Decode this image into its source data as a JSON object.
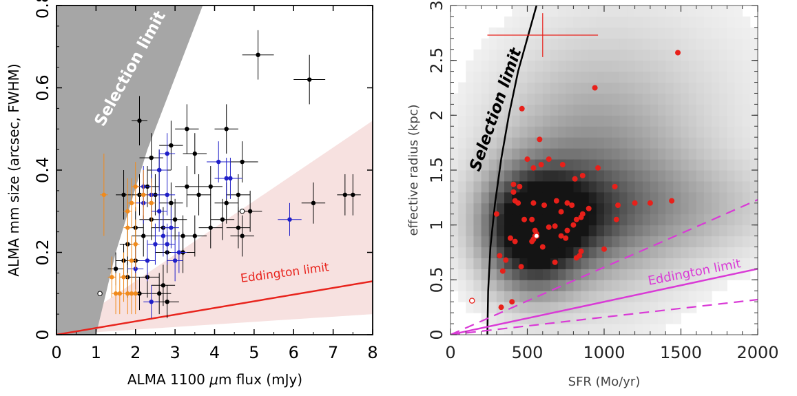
{
  "chart_data": [
    {
      "type": "scatter",
      "xlabel_pre": "ALMA 1100 ",
      "xlabel_mu": "μ",
      "xlabel_post": "m flux (mJy)",
      "ylabel": "ALMA mm size (arcsec, FWHM)",
      "xlim": [
        0,
        8
      ],
      "ylim": [
        0,
        0.8
      ],
      "x_ticks": [
        0,
        1,
        2,
        3,
        4,
        5,
        6,
        7,
        8
      ],
      "y_ticks": [
        0,
        0.2,
        0.4,
        0.6,
        0.8
      ],
      "y_tick_labels": [
        "0",
        "0.2",
        "0.4",
        "0.6",
        "0.8"
      ],
      "annotations": {
        "selection": "Selection limit",
        "eddington": "Eddington limit"
      },
      "colors": {
        "selection_region": "#a6a6a6",
        "eddington_band": "#f7e1e0",
        "eddington_line": "#e8231c",
        "black": "#000000",
        "blue": "#1f1fc8",
        "orange": "#f08a1c"
      },
      "selection_boundary": [
        [
          1.0,
          0.0
        ],
        [
          1.5,
          0.2
        ],
        [
          2.3,
          0.45
        ],
        [
          3.7,
          0.8
        ]
      ],
      "eddington_band": {
        "lower": [
          [
            0,
            0
          ],
          [
            8,
            0.05
          ]
        ],
        "upper": [
          [
            0,
            0
          ],
          [
            8,
            0.52
          ]
        ]
      },
      "eddington_line": [
        [
          0,
          0
        ],
        [
          8,
          0.13
        ]
      ],
      "series": [
        {
          "color": "black",
          "points": [
            [
              5.1,
              0.68,
              0.4,
              0.06
            ],
            [
              6.4,
              0.62,
              0.4,
              0.06
            ],
            [
              4.3,
              0.5,
              0.3,
              0.06
            ],
            [
              3.3,
              0.5,
              0.3,
              0.06
            ],
            [
              2.1,
              0.52,
              0.2,
              0.06
            ],
            [
              2.9,
              0.46,
              0.3,
              0.06
            ],
            [
              3.5,
              0.44,
              0.3,
              0.05
            ],
            [
              2.4,
              0.43,
              0.3,
              0.06
            ],
            [
              2.6,
              0.4,
              0.3,
              0.05
            ],
            [
              4.7,
              0.42,
              0.4,
              0.05
            ],
            [
              1.7,
              0.34,
              0.2,
              0.06
            ],
            [
              2.1,
              0.34,
              0.2,
              0.05
            ],
            [
              2.3,
              0.36,
              0.3,
              0.05
            ],
            [
              2.5,
              0.34,
              0.3,
              0.05
            ],
            [
              2.9,
              0.32,
              0.3,
              0.05
            ],
            [
              3.3,
              0.36,
              0.3,
              0.05
            ],
            [
              3.6,
              0.34,
              0.3,
              0.05
            ],
            [
              3.9,
              0.36,
              0.3,
              0.05
            ],
            [
              4.3,
              0.32,
              0.3,
              0.05
            ],
            [
              4.6,
              0.34,
              0.3,
              0.05
            ],
            [
              4.9,
              0.3,
              0.3,
              0.05
            ],
            [
              4.2,
              0.28,
              0.3,
              0.05
            ],
            [
              4.6,
              0.26,
              0.3,
              0.05
            ],
            [
              4.7,
              0.24,
              0.3,
              0.05
            ],
            [
              3.9,
              0.26,
              0.3,
              0.05
            ],
            [
              3.5,
              0.24,
              0.3,
              0.05
            ],
            [
              3.2,
              0.24,
              0.3,
              0.05
            ],
            [
              3.0,
              0.28,
              0.3,
              0.05
            ],
            [
              2.7,
              0.26,
              0.3,
              0.05
            ],
            [
              2.4,
              0.28,
              0.3,
              0.05
            ],
            [
              2.2,
              0.24,
              0.3,
              0.05
            ],
            [
              2.0,
              0.26,
              0.2,
              0.05
            ],
            [
              1.8,
              0.22,
              0.2,
              0.05
            ],
            [
              2.0,
              0.18,
              0.2,
              0.05
            ],
            [
              1.8,
              0.14,
              0.2,
              0.05
            ],
            [
              2.3,
              0.14,
              0.3,
              0.05
            ],
            [
              2.8,
              0.2,
              0.3,
              0.05
            ],
            [
              3.2,
              0.2,
              0.3,
              0.05
            ],
            [
              2.7,
              0.12,
              0.3,
              0.05
            ],
            [
              2.6,
              0.1,
              0.3,
              0.05
            ],
            [
              2.8,
              0.08,
              0.3,
              0.04
            ],
            [
              2.1,
              0.1,
              0.2,
              0.04
            ],
            [
              1.5,
              0.16,
              0.2,
              0.04
            ],
            [
              1.7,
              0.18,
              0.2,
              0.04
            ],
            [
              6.5,
              0.32,
              0.3,
              0.05
            ],
            [
              7.3,
              0.34,
              0.2,
              0.05
            ],
            [
              7.5,
              0.34,
              0.2,
              0.05
            ]
          ]
        },
        {
          "color": "blue",
          "points": [
            [
              2.8,
              0.44,
              0.2,
              0.05
            ],
            [
              4.1,
              0.42,
              0.3,
              0.05
            ],
            [
              4.3,
              0.38,
              0.3,
              0.05
            ],
            [
              4.4,
              0.38,
              0.3,
              0.05
            ],
            [
              2.2,
              0.36,
              0.2,
              0.05
            ],
            [
              2.4,
              0.34,
              0.2,
              0.05
            ],
            [
              2.6,
              0.4,
              0.2,
              0.05
            ],
            [
              2.8,
              0.34,
              0.2,
              0.05
            ],
            [
              2.2,
              0.32,
              0.2,
              0.05
            ],
            [
              2.6,
              0.3,
              0.2,
              0.05
            ],
            [
              2.9,
              0.26,
              0.2,
              0.05
            ],
            [
              2.7,
              0.24,
              0.2,
              0.05
            ],
            [
              2.5,
              0.22,
              0.2,
              0.05
            ],
            [
              2.8,
              0.22,
              0.2,
              0.05
            ],
            [
              3.1,
              0.2,
              0.2,
              0.05
            ],
            [
              3.0,
              0.18,
              0.2,
              0.05
            ],
            [
              2.3,
              0.18,
              0.2,
              0.05
            ],
            [
              2.0,
              0.16,
              0.2,
              0.05
            ],
            [
              2.4,
              0.08,
              0.2,
              0.04
            ],
            [
              5.9,
              0.28,
              0.3,
              0.04
            ]
          ]
        },
        {
          "color": "orange",
          "points": [
            [
              1.2,
              0.34,
              0.1,
              0.1
            ],
            [
              1.8,
              0.3,
              0.1,
              0.08
            ],
            [
              1.8,
              0.26,
              0.1,
              0.07
            ],
            [
              1.9,
              0.32,
              0.1,
              0.06
            ],
            [
              2.0,
              0.36,
              0.1,
              0.06
            ],
            [
              2.2,
              0.34,
              0.1,
              0.06
            ],
            [
              2.4,
              0.32,
              0.1,
              0.06
            ],
            [
              2.0,
              0.22,
              0.1,
              0.06
            ],
            [
              1.9,
              0.18,
              0.1,
              0.06
            ],
            [
              1.7,
              0.14,
              0.1,
              0.06
            ],
            [
              1.6,
              0.1,
              0.1,
              0.05
            ],
            [
              1.8,
              0.1,
              0.1,
              0.05
            ],
            [
              1.9,
              0.1,
              0.1,
              0.05
            ],
            [
              2.0,
              0.1,
              0.1,
              0.05
            ],
            [
              1.5,
              0.1,
              0.1,
              0.05
            ],
            [
              1.4,
              0.14,
              0.1,
              0.05
            ]
          ]
        }
      ],
      "open_points": [
        [
          1.1,
          0.1
        ],
        [
          4.7,
          0.3
        ]
      ]
    },
    {
      "type": "scatter",
      "xlabel": "SFR (Mo/yr)",
      "ylabel": "effective radius (kpc)",
      "xlim": [
        0,
        2000
      ],
      "ylim": [
        0,
        3
      ],
      "x_ticks": [
        0,
        500,
        1000,
        1500,
        2000
      ],
      "y_ticks": [
        0,
        0.5,
        1,
        1.5,
        2,
        2.5,
        3
      ],
      "y_tick_labels": [
        "0",
        "0.5",
        "1",
        "1.5",
        "2",
        "2.5",
        "3"
      ],
      "annotations": {
        "selection": "Selection limit",
        "eddington": "Eddington limit"
      },
      "colors": {
        "points": "#e8201a",
        "eddington": "#d93ad6",
        "selection": "#000000"
      },
      "selection_curve": [
        [
          240,
          0
        ],
        [
          245,
          0.4
        ],
        [
          260,
          0.8
        ],
        [
          290,
          1.2
        ],
        [
          330,
          1.6
        ],
        [
          380,
          2.0
        ],
        [
          440,
          2.4
        ],
        [
          520,
          2.8
        ],
        [
          560,
          3.0
        ]
      ],
      "eddington_line": [
        [
          0,
          0
        ],
        [
          2000,
          0.6
        ]
      ],
      "eddington_dashed_upper": [
        [
          0,
          0
        ],
        [
          2000,
          1.23
        ]
      ],
      "eddington_dashed_lower": [
        [
          0,
          0
        ],
        [
          2000,
          0.32
        ]
      ],
      "typical_error": {
        "x": 600,
        "y": 2.73,
        "x_err": 360,
        "y_err": 0.2
      },
      "density_peaks": [
        {
          "x": 530,
          "y": 0.92,
          "sx": 190,
          "sy": 0.33,
          "w": 1.0
        },
        {
          "x": 700,
          "y": 1.08,
          "sx": 260,
          "sy": 0.3,
          "w": 0.55
        },
        {
          "x": 900,
          "y": 1.4,
          "sx": 420,
          "sy": 0.7,
          "w": 0.35
        },
        {
          "x": 1300,
          "y": 1.15,
          "sx": 550,
          "sy": 0.3,
          "w": 0.22
        },
        {
          "x": 1300,
          "y": 2.1,
          "sx": 600,
          "sy": 0.8,
          "w": 0.08
        }
      ],
      "points": [
        [
          1480,
          2.57
        ],
        [
          940,
          2.25
        ],
        [
          465,
          2.06
        ],
        [
          580,
          1.78
        ],
        [
          500,
          1.6
        ],
        [
          640,
          1.6
        ],
        [
          590,
          1.55
        ],
        [
          730,
          1.55
        ],
        [
          540,
          1.52
        ],
        [
          960,
          1.52
        ],
        [
          410,
          1.37
        ],
        [
          410,
          1.3
        ],
        [
          450,
          1.35
        ],
        [
          860,
          1.45
        ],
        [
          810,
          1.42
        ],
        [
          1070,
          1.35
        ],
        [
          420,
          1.22
        ],
        [
          440,
          1.2
        ],
        [
          540,
          1.2
        ],
        [
          610,
          1.18
        ],
        [
          690,
          1.22
        ],
        [
          760,
          1.2
        ],
        [
          790,
          1.18
        ],
        [
          1090,
          1.18
        ],
        [
          1200,
          1.2
        ],
        [
          1300,
          1.2
        ],
        [
          1440,
          1.22
        ],
        [
          300,
          1.1
        ],
        [
          480,
          1.05
        ],
        [
          530,
          1.05
        ],
        [
          720,
          1.12
        ],
        [
          860,
          1.1
        ],
        [
          850,
          1.07
        ],
        [
          820,
          1.05
        ],
        [
          800,
          1.0
        ],
        [
          1080,
          1.05
        ],
        [
          900,
          1.15
        ],
        [
          550,
          0.95
        ],
        [
          560,
          0.92
        ],
        [
          550,
          0.9
        ],
        [
          640,
          0.98
        ],
        [
          680,
          0.99
        ],
        [
          720,
          0.9
        ],
        [
          760,
          0.95
        ],
        [
          750,
          0.88
        ],
        [
          390,
          0.88
        ],
        [
          420,
          0.85
        ],
        [
          530,
          0.85
        ],
        [
          540,
          0.87
        ],
        [
          600,
          0.8
        ],
        [
          680,
          0.66
        ],
        [
          850,
          0.76
        ],
        [
          840,
          0.72
        ],
        [
          820,
          0.7
        ],
        [
          320,
          0.72
        ],
        [
          360,
          0.68
        ],
        [
          460,
          0.62
        ],
        [
          1000,
          0.78
        ],
        [
          340,
          0.58
        ],
        [
          400,
          0.3
        ],
        [
          330,
          0.25
        ]
      ],
      "open_points": [
        [
          140,
          0.31
        ],
        [
          560,
          0.9
        ]
      ]
    }
  ]
}
